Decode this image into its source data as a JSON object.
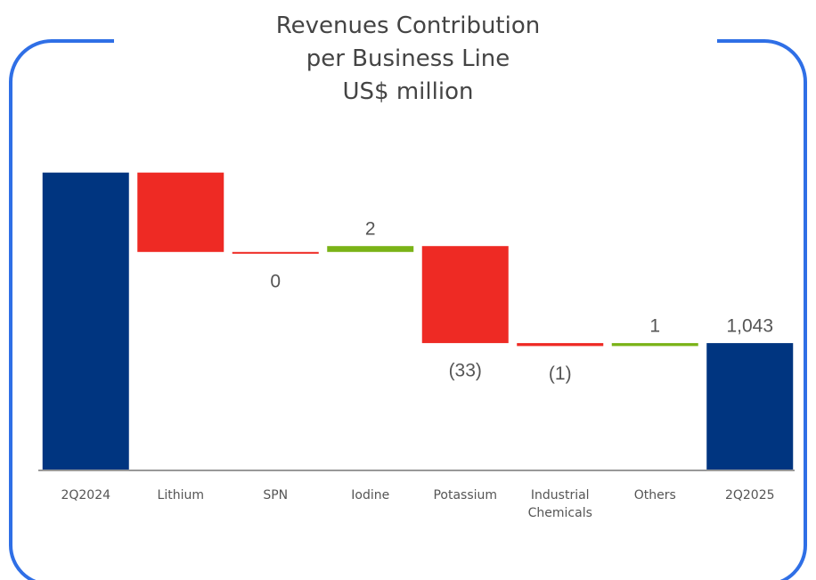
{
  "chart_data": {
    "type": "waterfall",
    "title": [
      "Revenues Contribution",
      "per Business Line",
      "US$ million"
    ],
    "categories": [
      "2Q2024",
      "Lithium",
      "SPN",
      "Iodine",
      "Potassium",
      "Industrial Chemicals",
      "Others",
      "2Q2025"
    ],
    "values": [
      1101,
      -27,
      0,
      2,
      -33,
      -1,
      1,
      1043
    ],
    "value_labels": [
      null,
      null,
      "0",
      "2",
      "(33)",
      "(1)",
      "1",
      "1,043"
    ],
    "totals": [
      true,
      false,
      false,
      false,
      false,
      false,
      false,
      true
    ],
    "colors": {
      "total": "#003580",
      "increase": "#7ab317",
      "decrease": "#ee2a24"
    },
    "ylim": [
      1000,
      1110
    ]
  }
}
